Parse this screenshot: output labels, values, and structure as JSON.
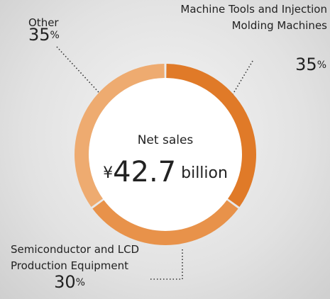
{
  "chart_data": {
    "type": "donut",
    "center_text": [
      "Net sales",
      "¥42.7 billion"
    ],
    "categories": [
      "Machine Tools and Injection Molding Machines",
      "Semiconductor and LCD Production Equipment",
      "Other"
    ],
    "values": [
      35,
      30,
      35
    ],
    "value_labels": [
      "35%",
      "30%",
      "35%"
    ],
    "colors": [
      "#e07a28",
      "#e8924a",
      "#eeab70"
    ]
  }
}
